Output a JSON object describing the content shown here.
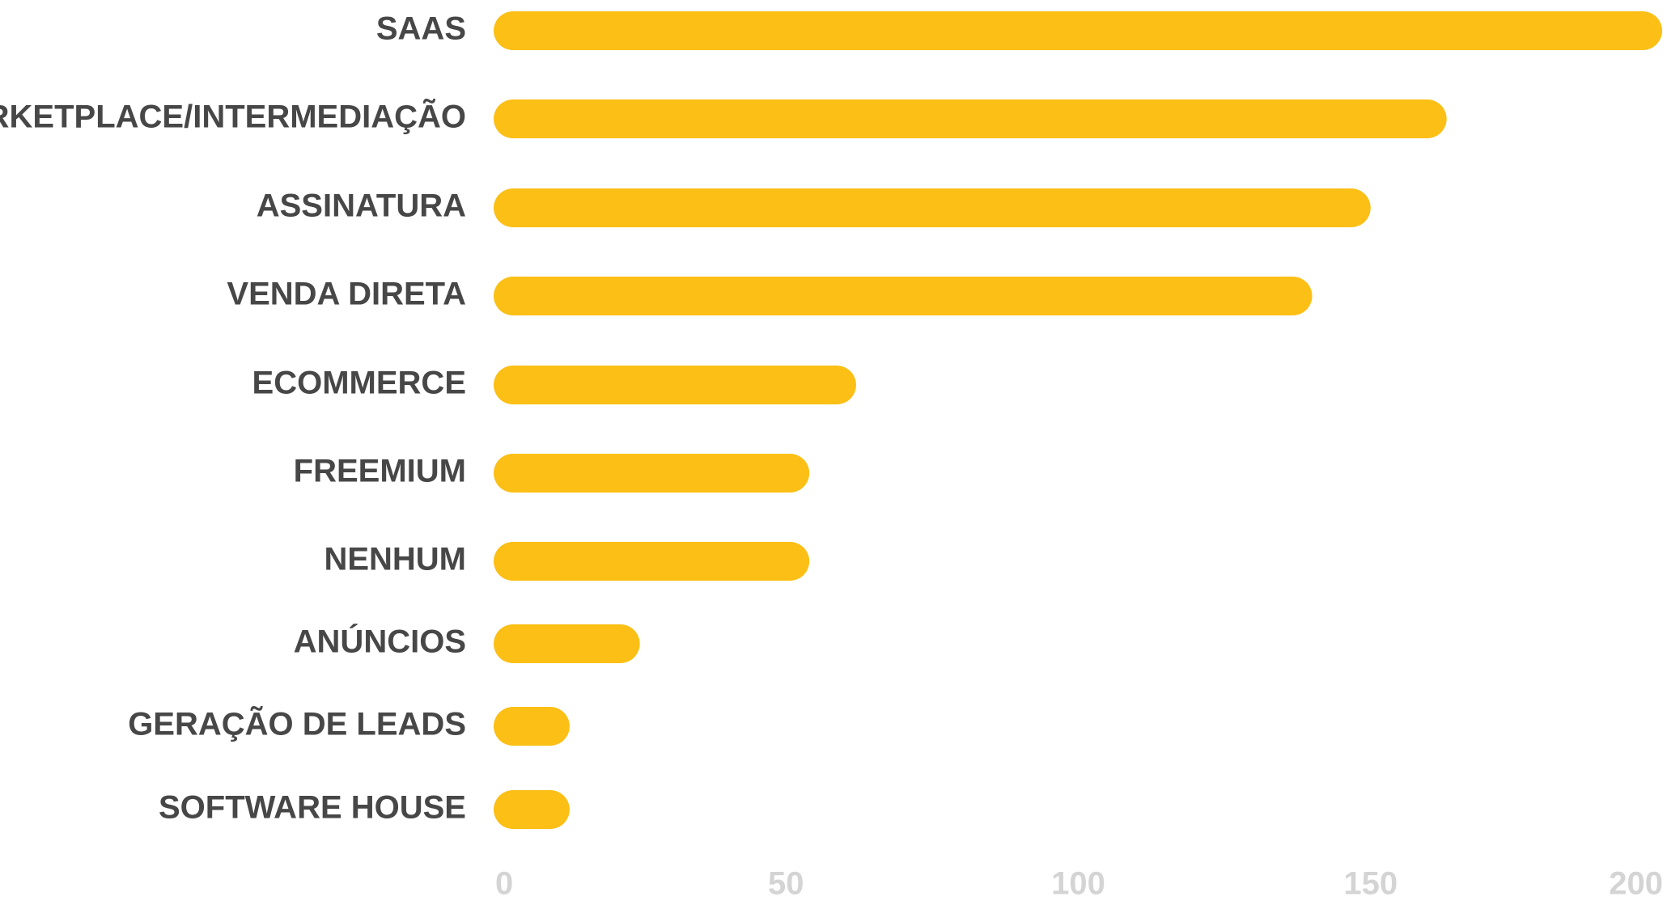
{
  "chart_data": {
    "type": "bar",
    "orientation": "horizontal",
    "categories": [
      "SAAS",
      "MARKETPLACE/INTERMEDIAÇÃO",
      "ASSINATURA",
      "VENDA DIRETA",
      "ECOMMERCE",
      "FREEMIUM",
      "NENHUM",
      "ANÚNCIOS",
      "GERAÇÃO DE LEADS",
      "SOFTWARE HOUSE"
    ],
    "values": [
      210,
      163,
      150,
      140,
      62,
      54,
      54,
      25,
      13,
      13
    ],
    "xlim": [
      0,
      200
    ],
    "x_ticks": [
      "0",
      "50",
      "100",
      "150",
      "200"
    ],
    "title": "",
    "xlabel": "",
    "ylabel": "",
    "grid": false,
    "legend": "none",
    "colors": {
      "bar": "#FBBF15",
      "category_text": "#474747",
      "tick_text": "#D4D4D4",
      "background": "#FFFFFF"
    }
  }
}
